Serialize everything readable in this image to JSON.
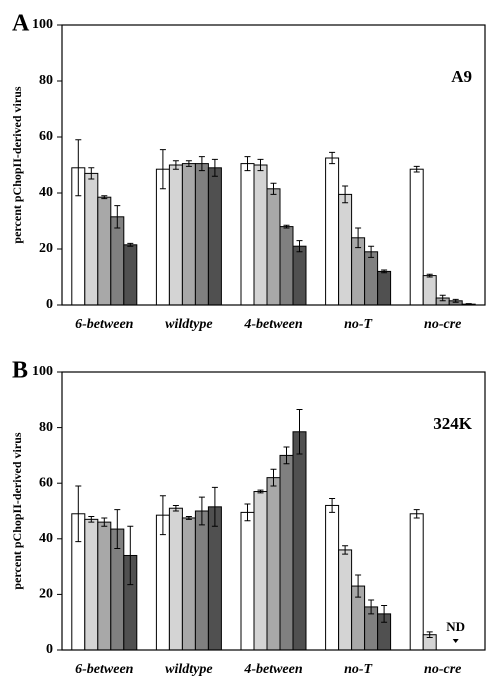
{
  "chart_data": [
    {
      "type": "bar",
      "panel_label": "A",
      "annotation": "A9",
      "ylabel": "percent pChopII-derived virus",
      "categories": [
        "6-between",
        "wildtype",
        "4-between",
        "no-T",
        "no-cre"
      ],
      "ylim": [
        0,
        100
      ],
      "yticks": [
        0,
        20,
        40,
        60,
        80,
        100
      ],
      "series": [
        {
          "color": "#ffffff",
          "values": [
            49,
            48.5,
            50.5,
            52.5,
            48.5
          ],
          "errors": [
            10,
            7,
            2.5,
            2,
            1
          ]
        },
        {
          "color": "#d4d4d4",
          "values": [
            47,
            50,
            50,
            39.5,
            10.5
          ],
          "errors": [
            2,
            1.5,
            2,
            3,
            0.5
          ]
        },
        {
          "color": "#a8a8a8",
          "values": [
            38.5,
            50.5,
            41.5,
            24,
            2.5
          ],
          "errors": [
            0.5,
            1,
            2,
            3.5,
            1
          ]
        },
        {
          "color": "#808080",
          "values": [
            31.5,
            50.5,
            28,
            19,
            1.5
          ],
          "errors": [
            4,
            2.5,
            0.5,
            2,
            0.5
          ]
        },
        {
          "color": "#505050",
          "values": [
            21.5,
            49,
            21,
            12,
            0.3
          ],
          "errors": [
            0.5,
            3,
            2,
            0.5,
            0.2
          ]
        }
      ]
    },
    {
      "type": "bar",
      "panel_label": "B",
      "annotation": "324K",
      "ylabel": "percent pChopII-derived virus",
      "categories": [
        "6-between",
        "wildtype",
        "4-between",
        "no-T",
        "no-cre"
      ],
      "ylim": [
        0,
        100
      ],
      "yticks": [
        0,
        20,
        40,
        60,
        80,
        100
      ],
      "missing_label": "ND",
      "series": [
        {
          "color": "#ffffff",
          "values": [
            49,
            48.5,
            49.5,
            52,
            49
          ],
          "errors": [
            10,
            7,
            3,
            2.5,
            1.5
          ]
        },
        {
          "color": "#d4d4d4",
          "values": [
            47,
            51,
            57,
            36,
            5.5
          ],
          "errors": [
            1,
            1,
            0.5,
            1.5,
            1
          ]
        },
        {
          "color": "#a8a8a8",
          "values": [
            46,
            47.5,
            62,
            23,
            null
          ],
          "errors": [
            1.5,
            0.5,
            3,
            4,
            null
          ]
        },
        {
          "color": "#808080",
          "values": [
            43.5,
            50,
            70,
            15.5,
            null
          ],
          "errors": [
            7,
            5,
            3,
            2.5,
            null
          ]
        },
        {
          "color": "#505050",
          "values": [
            34,
            51.5,
            78.5,
            13,
            null
          ],
          "errors": [
            10.5,
            7,
            8,
            3,
            null
          ]
        }
      ]
    }
  ]
}
